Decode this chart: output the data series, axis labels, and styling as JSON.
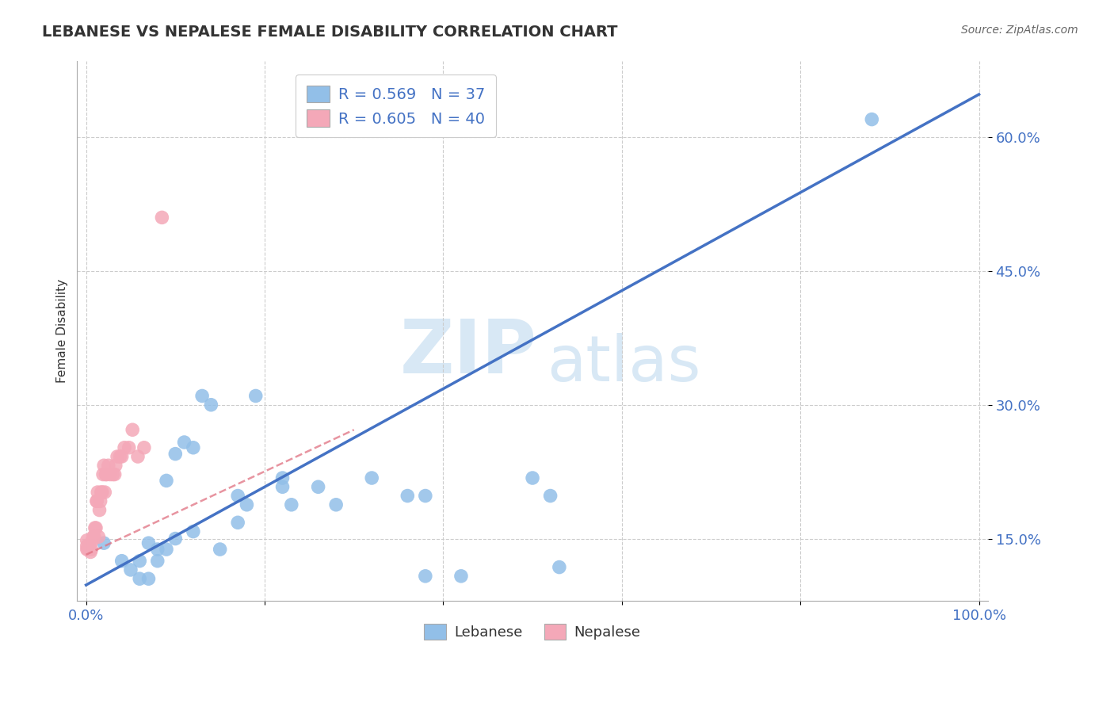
{
  "title": "LEBANESE VS NEPALESE FEMALE DISABILITY CORRELATION CHART",
  "source": "Source: ZipAtlas.com",
  "ylabel": "Female Disability",
  "xlim": [
    -0.01,
    1.01
  ],
  "ylim": [
    0.08,
    0.685
  ],
  "xticks": [
    0.0,
    0.2,
    0.4,
    0.6,
    0.8,
    1.0
  ],
  "xtick_labels": [
    "0.0%",
    "",
    "",
    "",
    "",
    "100.0%"
  ],
  "ytick_positions": [
    0.15,
    0.3,
    0.45,
    0.6
  ],
  "ytick_labels": [
    "15.0%",
    "30.0%",
    "45.0%",
    "60.0%"
  ],
  "lebanese_R": 0.569,
  "lebanese_N": 37,
  "nepalese_R": 0.605,
  "nepalese_N": 40,
  "lebanese_color": "#92bfe8",
  "nepalese_color": "#f4a8b8",
  "regression_blue_color": "#4472c4",
  "regression_pink_color": "#e07080",
  "watermark_ZIP": "ZIP",
  "watermark_atlas": "atlas",
  "blue_line_x0": 0.0,
  "blue_line_y0": 0.098,
  "blue_line_x1": 1.0,
  "blue_line_y1": 0.648,
  "pink_line_x0": 0.0,
  "pink_line_y0": 0.132,
  "pink_line_x1": 0.3,
  "pink_line_y1": 0.272,
  "lebanese_x": [
    0.02,
    0.04,
    0.05,
    0.06,
    0.06,
    0.07,
    0.07,
    0.08,
    0.08,
    0.09,
    0.09,
    0.1,
    0.1,
    0.11,
    0.12,
    0.12,
    0.13,
    0.14,
    0.15,
    0.17,
    0.17,
    0.18,
    0.19,
    0.22,
    0.22,
    0.23,
    0.26,
    0.28,
    0.32,
    0.36,
    0.38,
    0.38,
    0.42,
    0.5,
    0.52,
    0.53,
    0.88
  ],
  "lebanese_y": [
    0.145,
    0.125,
    0.115,
    0.105,
    0.125,
    0.105,
    0.145,
    0.125,
    0.138,
    0.138,
    0.215,
    0.15,
    0.245,
    0.258,
    0.252,
    0.158,
    0.31,
    0.3,
    0.138,
    0.168,
    0.198,
    0.188,
    0.31,
    0.208,
    0.218,
    0.188,
    0.208,
    0.188,
    0.218,
    0.198,
    0.198,
    0.108,
    0.108,
    0.218,
    0.198,
    0.118,
    0.62
  ],
  "nepalese_x": [
    0.001,
    0.001,
    0.001,
    0.002,
    0.003,
    0.004,
    0.005,
    0.006,
    0.007,
    0.008,
    0.009,
    0.01,
    0.011,
    0.012,
    0.012,
    0.013,
    0.014,
    0.015,
    0.016,
    0.017,
    0.018,
    0.019,
    0.02,
    0.021,
    0.022,
    0.023,
    0.025,
    0.027,
    0.03,
    0.032,
    0.033,
    0.035,
    0.038,
    0.04,
    0.043,
    0.048,
    0.052,
    0.058,
    0.065,
    0.085
  ],
  "nepalese_y": [
    0.138,
    0.142,
    0.148,
    0.138,
    0.142,
    0.142,
    0.135,
    0.138,
    0.148,
    0.152,
    0.152,
    0.162,
    0.162,
    0.192,
    0.192,
    0.202,
    0.152,
    0.182,
    0.192,
    0.202,
    0.202,
    0.222,
    0.232,
    0.202,
    0.222,
    0.222,
    0.232,
    0.222,
    0.222,
    0.222,
    0.232,
    0.242,
    0.242,
    0.242,
    0.252,
    0.252,
    0.272,
    0.242,
    0.252,
    0.51
  ]
}
